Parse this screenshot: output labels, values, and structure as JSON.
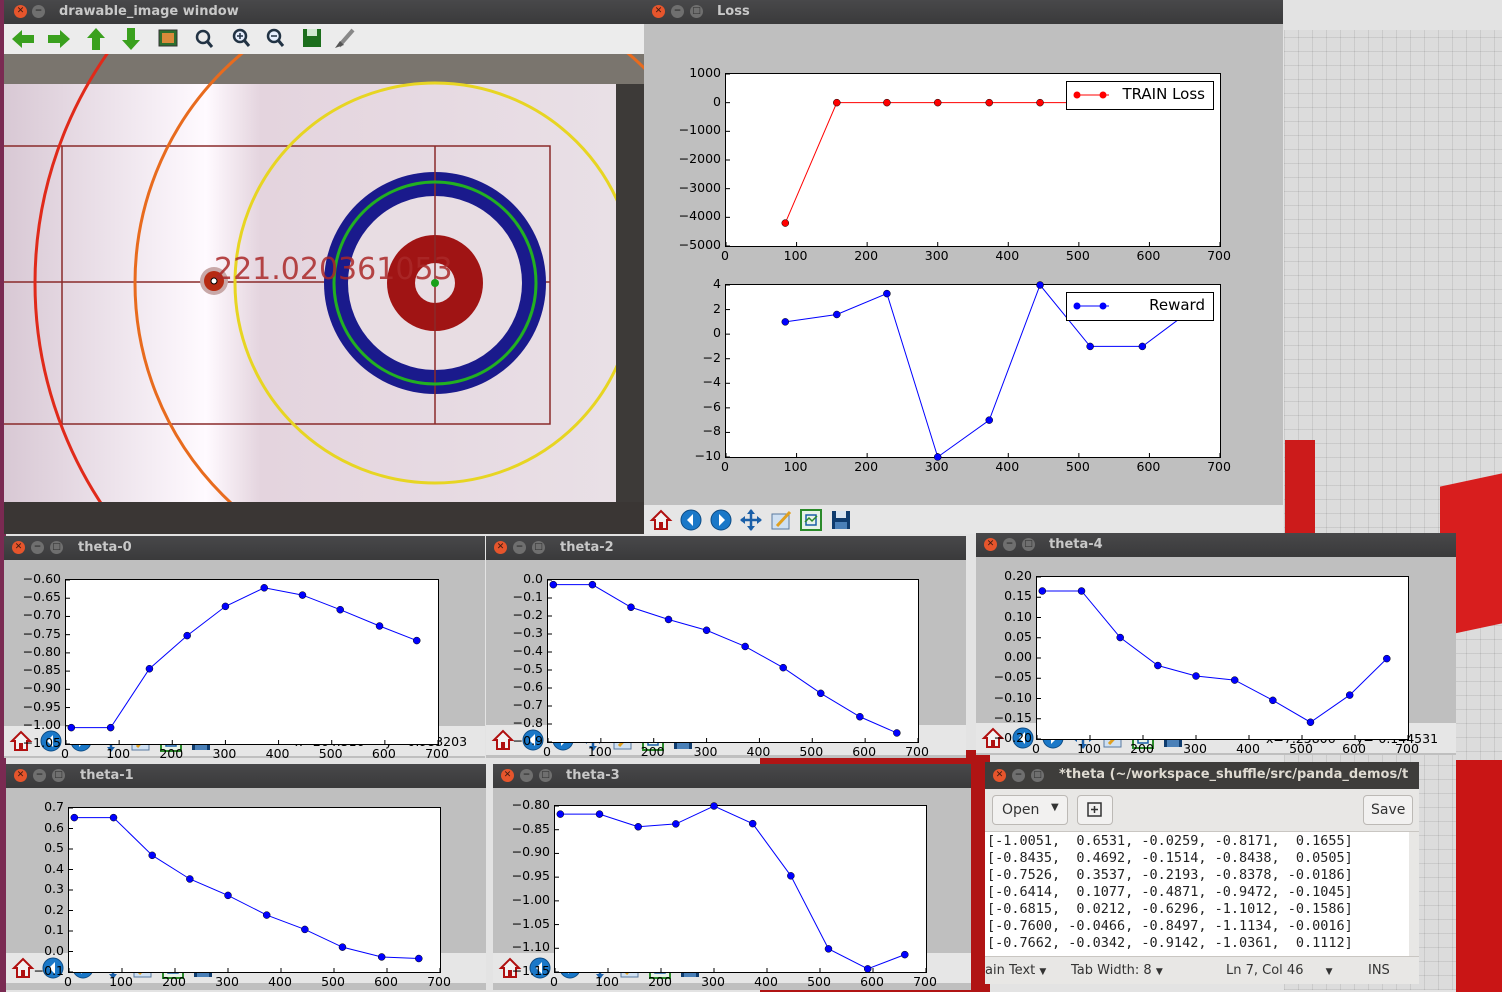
{
  "windows": {
    "camera": {
      "title": "drawable_image window",
      "overlay_text": "221.020361053",
      "toolbar_icons": [
        "arrow-left-icon",
        "arrow-right-icon",
        "arrow-up-icon",
        "arrow-down-icon",
        "image-icon",
        "zoom-fit-icon",
        "zoom-in-icon",
        "zoom-out-icon",
        "save-icon",
        "brush-icon"
      ]
    },
    "loss": {
      "title": "Loss",
      "coords": {
        "x": "",
        "y": ""
      }
    },
    "theta0": {
      "title": "theta-0",
      "coords": {
        "x": "x=264.516",
        "y": "y=-0.983203"
      }
    },
    "theta1": {
      "title": "theta-1",
      "coords": {
        "x": "",
        "y": ""
      }
    },
    "theta2": {
      "title": "theta-2",
      "coords": {
        "x": "",
        "y": ""
      }
    },
    "theta3": {
      "title": "theta-3",
      "coords": {
        "x": "",
        "y": ""
      }
    },
    "theta4": {
      "title": "theta-4",
      "coords": {
        "x": "x=7.25806",
        "y": "y=-0.144531"
      }
    },
    "editor": {
      "title": "*theta (~/workspace_shuffle/src/panda_demos/t",
      "open_label": "Open",
      "save_label": "Save",
      "lines": [
        "[-1.0051,  0.6531, -0.0259, -0.8171,  0.1655]",
        "[-0.8435,  0.4692, -0.1514, -0.8438,  0.0505]",
        "[-0.7526,  0.3537, -0.2193, -0.8378, -0.0186]",
        "[-0.6414,  0.1077, -0.4871, -0.9472, -0.1045]",
        "[-0.6815,  0.0212, -0.6296, -1.1012, -0.1586]",
        "[-0.7600, -0.0466, -0.8497, -1.1134, -0.0016]",
        "[-0.7662, -0.0342, -0.9142, -1.0361,  0.1112]"
      ],
      "status": {
        "syntax": "ain Text",
        "tab_width": "Tab Width: 8",
        "position": "Ln 7, Col 46",
        "mode": "INS"
      }
    }
  },
  "colors": {
    "titlebar": "#3c3c3d",
    "series_blue": "#0000ff",
    "series_red": "#ff0000",
    "panel": "#bfbfbf"
  },
  "mpl_toolbar_icons": [
    "home-icon",
    "back-icon",
    "forward-icon",
    "pan-icon",
    "edit-axis-icon",
    "configure-subplots-icon",
    "save-figure-icon"
  ],
  "chart_data": [
    {
      "id": "loss",
      "type": "line",
      "x": [
        84,
        157,
        228,
        300,
        373,
        445,
        516,
        590,
        660
      ],
      "series": [
        {
          "name": "TRAIN Loss",
          "values": [
            -4200,
            0,
            0,
            0,
            0,
            0,
            0,
            0,
            0
          ]
        }
      ],
      "xlim": [
        0,
        700
      ],
      "ylim": [
        -5000,
        1000
      ],
      "xticks": [
        "0",
        "100",
        "200",
        "300",
        "400",
        "500",
        "600",
        "700"
      ],
      "yticks": [
        "1000",
        "0",
        "−1000",
        "−2000",
        "−3000",
        "−4000",
        "−5000"
      ],
      "legend": "top-right",
      "grid": false
    },
    {
      "id": "reward",
      "type": "line",
      "x": [
        84,
        157,
        228,
        300,
        373,
        445,
        516,
        590,
        660
      ],
      "series": [
        {
          "name": "Reward",
          "values": [
            1,
            1.6,
            3.3,
            -10,
            -7,
            4,
            -1,
            -1,
            2
          ]
        }
      ],
      "xlim": [
        0,
        700
      ],
      "ylim": [
        -10,
        4
      ],
      "xticks": [
        "0",
        "100",
        "200",
        "300",
        "400",
        "500",
        "600",
        "700"
      ],
      "yticks": [
        "4",
        "2",
        "0",
        "−2",
        "−4",
        "−6",
        "−8",
        "−10"
      ],
      "legend": "top-right",
      "grid": false
    },
    {
      "id": "theta0",
      "type": "line",
      "x": [
        10,
        84,
        157,
        228,
        300,
        373,
        445,
        516,
        590,
        660
      ],
      "series": [
        {
          "values": [
            -1.0051,
            -1.0051,
            -0.8435,
            -0.7526,
            -0.6724,
            -0.6214,
            -0.6414,
            -0.6815,
            -0.7262,
            -0.7662
          ]
        }
      ],
      "xlim": [
        0,
        700
      ],
      "ylim": [
        -1.05,
        -0.6
      ],
      "xticks": [
        "0",
        "100",
        "200",
        "300",
        "400",
        "500",
        "600",
        "700"
      ],
      "yticks": [
        "−0.60",
        "−0.65",
        "−0.70",
        "−0.75",
        "−0.80",
        "−0.85",
        "−0.90",
        "−0.95",
        "−1.00",
        "−1.05"
      ]
    },
    {
      "id": "theta1",
      "type": "line",
      "x": [
        10,
        84,
        157,
        228,
        300,
        373,
        445,
        516,
        590,
        660
      ],
      "series": [
        {
          "values": [
            0.6531,
            0.6531,
            0.4692,
            0.3537,
            0.2737,
            0.1777,
            0.1077,
            0.0212,
            -0.0266,
            -0.0342
          ]
        }
      ],
      "xlim": [
        0,
        700
      ],
      "ylim": [
        -0.1,
        0.7
      ],
      "xticks": [
        "0",
        "100",
        "200",
        "300",
        "400",
        "500",
        "600",
        "700"
      ],
      "yticks": [
        "0.7",
        "0.6",
        "0.5",
        "0.4",
        "0.3",
        "0.2",
        "0.1",
        "0.0",
        "−0.1"
      ]
    },
    {
      "id": "theta2",
      "type": "line",
      "x": [
        10,
        84,
        157,
        228,
        300,
        373,
        445,
        516,
        590,
        660
      ],
      "series": [
        {
          "values": [
            -0.0259,
            -0.0259,
            -0.1514,
            -0.2193,
            -0.2793,
            -0.3693,
            -0.4871,
            -0.6296,
            -0.7597,
            -0.8497
          ]
        }
      ],
      "xlim": [
        0,
        700
      ],
      "ylim": [
        -0.9,
        0.0
      ],
      "xticks": [
        "0",
        "100",
        "200",
        "300",
        "400",
        "500",
        "600",
        "700"
      ],
      "yticks": [
        "0.0",
        "−0.1",
        "−0.2",
        "−0.3",
        "−0.4",
        "−0.5",
        "−0.6",
        "−0.7",
        "−0.8",
        "−0.9"
      ]
    },
    {
      "id": "theta3",
      "type": "line",
      "x": [
        10,
        84,
        157,
        228,
        300,
        373,
        445,
        516,
        590,
        660
      ],
      "series": [
        {
          "values": [
            -0.8171,
            -0.8171,
            -0.8438,
            -0.8378,
            -0.8,
            -0.8372,
            -0.9472,
            -1.1012,
            -1.1434,
            -1.1134
          ]
        }
      ],
      "xlim": [
        0,
        700
      ],
      "ylim": [
        -1.15,
        -0.8
      ],
      "xticks": [
        "0",
        "100",
        "200",
        "300",
        "400",
        "500",
        "600",
        "700"
      ],
      "yticks": [
        "−0.80",
        "−0.85",
        "−0.90",
        "−0.95",
        "−1.00",
        "−1.05",
        "−1.10",
        "−1.15"
      ]
    },
    {
      "id": "theta4",
      "type": "line",
      "x": [
        10,
        84,
        157,
        228,
        300,
        373,
        445,
        516,
        590,
        660
      ],
      "series": [
        {
          "values": [
            0.1655,
            0.1655,
            0.0505,
            -0.0186,
            -0.0445,
            -0.0545,
            -0.1045,
            -0.1586,
            -0.0916,
            -0.0016
          ]
        }
      ],
      "xlim": [
        0,
        700
      ],
      "ylim": [
        -0.2,
        0.2
      ],
      "xticks": [
        "0",
        "100",
        "200",
        "300",
        "400",
        "500",
        "600",
        "700"
      ],
      "yticks": [
        "0.20",
        "0.15",
        "0.10",
        "0.05",
        "0.00",
        "−0.05",
        "−0.10",
        "−0.15",
        "−0.20"
      ]
    }
  ]
}
